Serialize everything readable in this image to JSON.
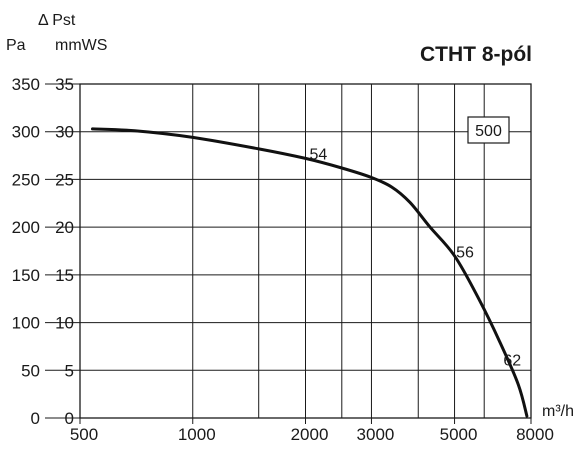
{
  "chart_data": {
    "type": "line",
    "title": "CTHT 8-pól",
    "xlabel": "m³/h",
    "ylabel_pa": "Pa",
    "ylabel_mmws_top": "Δ Pst",
    "ylabel_mmws": "mmWS",
    "x_scale": "log",
    "xlim": [
      500,
      8000
    ],
    "ylim_pa": [
      0,
      350
    ],
    "ylim_mmws": [
      0,
      35
    ],
    "x_ticks": [
      500,
      1000,
      2000,
      3000,
      5000,
      8000
    ],
    "x_tick_labels": [
      "500",
      "1000",
      "2000",
      "3000",
      "5000",
      "8000"
    ],
    "x_grid": [
      1000,
      1500,
      2000,
      2500,
      3000,
      4000,
      5000,
      6000,
      8000
    ],
    "y_ticks_pa": [
      0,
      50,
      100,
      150,
      200,
      250,
      300,
      350
    ],
    "y_ticks_mmws": [
      0,
      5,
      10,
      15,
      20,
      25,
      30,
      35
    ],
    "grid": true,
    "legend_box": "500",
    "series": [
      {
        "x": [
          540,
          700,
          1000,
          1500,
          2000,
          2500,
          3000,
          3400,
          3800,
          4300,
          5000,
          5800,
          6600,
          7400,
          7800
        ],
        "values": [
          303,
          301,
          294,
          282,
          272,
          262,
          252,
          242,
          226,
          200,
          170,
          125,
          80,
          35,
          2
        ]
      }
    ],
    "annotations": [
      {
        "text": "54",
        "x": 2050,
        "y": 271
      },
      {
        "text": "56",
        "x": 5050,
        "y": 168
      },
      {
        "text": "62",
        "x": 6750,
        "y": 55
      }
    ]
  }
}
